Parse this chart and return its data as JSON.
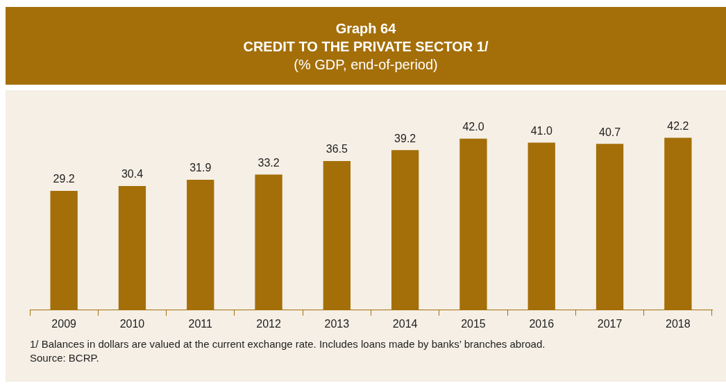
{
  "chart_data": {
    "type": "bar",
    "title": "Graph 64\nCREDIT TO THE PRIVATE SECTOR 1/",
    "subtitle": "(% GDP, end-of-period)",
    "categories": [
      "2009",
      "2010",
      "2011",
      "2012",
      "2013",
      "2014",
      "2015",
      "2016",
      "2017",
      "2018"
    ],
    "values": [
      29.2,
      30.4,
      31.9,
      33.2,
      36.5,
      39.2,
      42.0,
      41.0,
      40.7,
      42.2
    ],
    "value_labels": [
      "29.2",
      "30.4",
      "31.9",
      "33.2",
      "36.5",
      "39.2",
      "42.0",
      "41.0",
      "40.7",
      "42.2"
    ],
    "color": "#a46f09",
    "grid": false,
    "legend": false,
    "tick_labels": "x",
    "annotations": [
      "1/  Balances in dollars are valued at the current exchange rate. Includes loans made by banks’ branches abroad.",
      "Source: BCRP."
    ]
  }
}
